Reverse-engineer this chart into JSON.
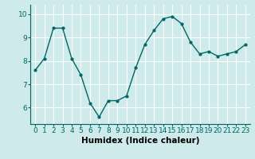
{
  "x": [
    0,
    1,
    2,
    3,
    4,
    5,
    6,
    7,
    8,
    9,
    10,
    11,
    12,
    13,
    14,
    15,
    16,
    17,
    18,
    19,
    20,
    21,
    22,
    23
  ],
  "y": [
    7.6,
    8.1,
    9.4,
    9.4,
    8.1,
    7.4,
    6.2,
    5.6,
    6.3,
    6.3,
    6.5,
    7.7,
    8.7,
    9.3,
    9.8,
    9.9,
    9.6,
    8.8,
    8.3,
    8.4,
    8.2,
    8.3,
    8.4,
    8.7
  ],
  "line_color": "#006666",
  "marker": "o",
  "marker_size": 2,
  "linewidth": 1.0,
  "xlim": [
    -0.5,
    23.5
  ],
  "ylim": [
    5.3,
    10.4
  ],
  "yticks": [
    6,
    7,
    8,
    9,
    10
  ],
  "xticks": [
    0,
    1,
    2,
    3,
    4,
    5,
    6,
    7,
    8,
    9,
    10,
    11,
    12,
    13,
    14,
    15,
    16,
    17,
    18,
    19,
    20,
    21,
    22,
    23
  ],
  "xlabel": "Humidex (Indice chaleur)",
  "background_color": "#ceeaea",
  "grid_color": "#ffffff",
  "xlabel_fontsize": 7.5,
  "tick_fontsize": 6.5
}
